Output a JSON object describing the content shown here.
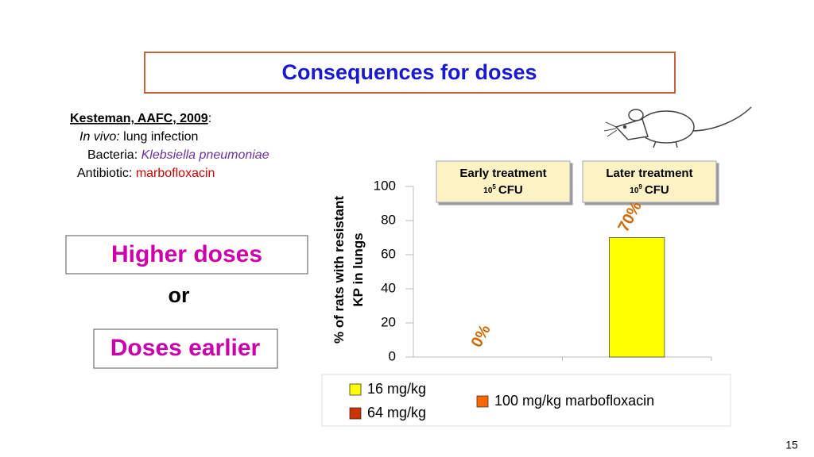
{
  "slide": {
    "title": "Consequences for doses",
    "reference": {
      "citation": "Kesteman, AAFC, 2009",
      "colon": ":"
    },
    "model": {
      "label": "In vivo:",
      "text": "lung infection"
    },
    "bacteria": {
      "label": "Bacteria:",
      "text": "Klebsiella pneumoniae"
    },
    "antibiotic": {
      "label": "Antibiotic:",
      "text": "marbofloxacin"
    },
    "option1": "Higher doses",
    "connector": "or",
    "option2": "Doses earlier",
    "page_number": "15"
  },
  "chart_data": {
    "type": "bar",
    "categories": [
      "Early treatment",
      "Later treatment"
    ],
    "category_sublabels": [
      {
        "base": "10",
        "exp": "5",
        "unit": "CFU"
      },
      {
        "base": "10",
        "exp": "9",
        "unit": "CFU"
      }
    ],
    "y_label": [
      "% of rats with resistant",
      "KP in lungs"
    ],
    "ylim": [
      0,
      100
    ],
    "yticks": [
      0,
      20,
      40,
      60,
      80,
      100
    ],
    "series": [
      {
        "name": "16 mg/kg",
        "color": "#ffff00",
        "values": [
          0,
          70
        ],
        "value_labels": [
          "0%",
          "70%"
        ]
      },
      {
        "name": "64 mg/kg",
        "color": "#cc3300",
        "values": [
          null,
          null
        ]
      },
      {
        "name": "100 mg/kg marbofloxacin",
        "color": "#ff6600",
        "values": [
          null,
          null
        ]
      }
    ]
  }
}
